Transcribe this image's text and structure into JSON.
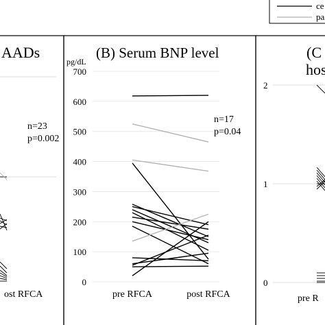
{
  "legend": {
    "entries": [
      {
        "label": "ce",
        "color": "#000000"
      },
      {
        "label": "pa",
        "color": "#b0b0b0"
      }
    ]
  },
  "panels": {
    "left": {
      "title": "AADs",
      "n_text": "n=23",
      "p_text": "p=0.002",
      "xlabel_right": "ost RFCA"
    },
    "middle": {
      "title": "(B) Serum BNP level",
      "unit": "pg/dL",
      "n_text": "n=17",
      "p_text": "p=0.04",
      "x_labels": [
        "pre RFCA",
        "post RFCA"
      ]
    },
    "right": {
      "title_line1": "(C",
      "title_line2": "hos",
      "x_label": "pre R"
    }
  },
  "chart_data": [
    {
      "type": "line",
      "title": "(B) Serum BNP level",
      "ylabel": "pg/dL",
      "categories": [
        "pre RFCA",
        "post RFCA"
      ],
      "ylim": [
        0,
        700
      ],
      "yticks": [
        0,
        100,
        200,
        300,
        400,
        500,
        600,
        700
      ],
      "annotations": [
        "n=17",
        "p=0.04"
      ],
      "series": [
        {
          "values": [
            618,
            620
          ],
          "color": "#000000"
        },
        {
          "values": [
            525,
            465
          ],
          "color": "#b0b0b0"
        },
        {
          "values": [
            405,
            368
          ],
          "color": "#b0b0b0"
        },
        {
          "values": [
            395,
            75
          ],
          "color": "#000000"
        },
        {
          "values": [
            258,
            150
          ],
          "color": "#000000"
        },
        {
          "values": [
            250,
            190
          ],
          "color": "#000000"
        },
        {
          "values": [
            240,
            130
          ],
          "color": "#000000"
        },
        {
          "values": [
            230,
            105
          ],
          "color": "#000000"
        },
        {
          "values": [
            215,
            175
          ],
          "color": "#000000"
        },
        {
          "values": [
            200,
            140
          ],
          "color": "#000000"
        },
        {
          "values": [
            185,
            60
          ],
          "color": "#000000"
        },
        {
          "values": [
            135,
            225
          ],
          "color": "#b0b0b0"
        },
        {
          "values": [
            80,
            70
          ],
          "color": "#000000"
        },
        {
          "values": [
            60,
            95
          ],
          "color": "#000000"
        },
        {
          "values": [
            55,
            155
          ],
          "color": "#000000"
        },
        {
          "values": [
            50,
            52
          ],
          "color": "#000000"
        },
        {
          "values": [
            20,
            200
          ],
          "color": "#000000"
        }
      ]
    }
  ]
}
